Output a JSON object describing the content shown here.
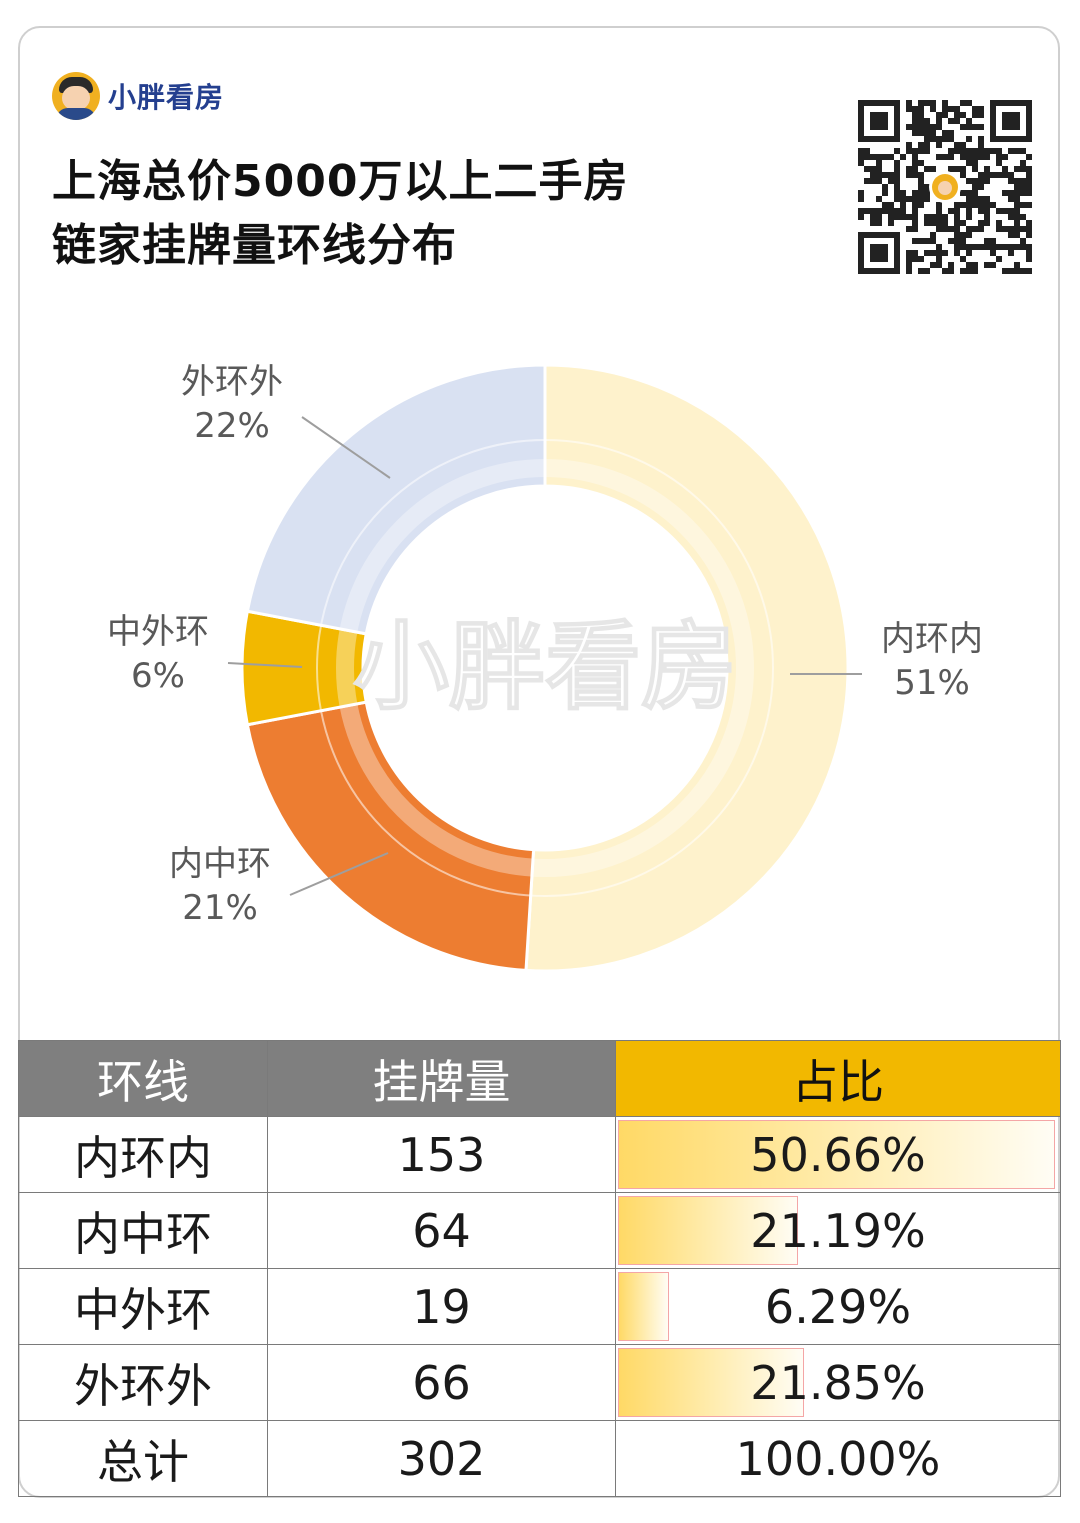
{
  "brand": {
    "name": "小胖看房"
  },
  "title": {
    "line1": "上海总价5000万以上二手房",
    "line2": "链家挂牌量环线分布"
  },
  "watermark": "小胖看房",
  "colors": {
    "inner_ring": "#fef2cc",
    "inner_middle": "#ed7d31",
    "middle_outer": "#f2b800",
    "outer_ring": "#d9e1f2",
    "header_gray": "#7f7f7f",
    "header_highlight": "#f2b800"
  },
  "chart_data": {
    "type": "pie",
    "variant": "donut",
    "categories": [
      "内环内",
      "内中环",
      "中外环",
      "外环外"
    ],
    "values": [
      51,
      21,
      6,
      22
    ],
    "labels": [
      "51%",
      "21%",
      "6%",
      "22%"
    ],
    "colors": [
      "#fef2cc",
      "#ed7d31",
      "#f2b800",
      "#d9e1f2"
    ]
  },
  "table": {
    "headers": [
      "环线",
      "挂牌量",
      "占比"
    ],
    "rows": [
      {
        "ring": "内环内",
        "count": "153",
        "share": "50.66%",
        "share_value": 0.5066
      },
      {
        "ring": "内中环",
        "count": "64",
        "share": "21.19%",
        "share_value": 0.2119
      },
      {
        "ring": "中外环",
        "count": "19",
        "share": "6.29%",
        "share_value": 0.0629
      },
      {
        "ring": "外环外",
        "count": "66",
        "share": "21.85%",
        "share_value": 0.2185
      }
    ],
    "total": {
      "ring": "总计",
      "count": "302",
      "share": "100.00%"
    }
  }
}
